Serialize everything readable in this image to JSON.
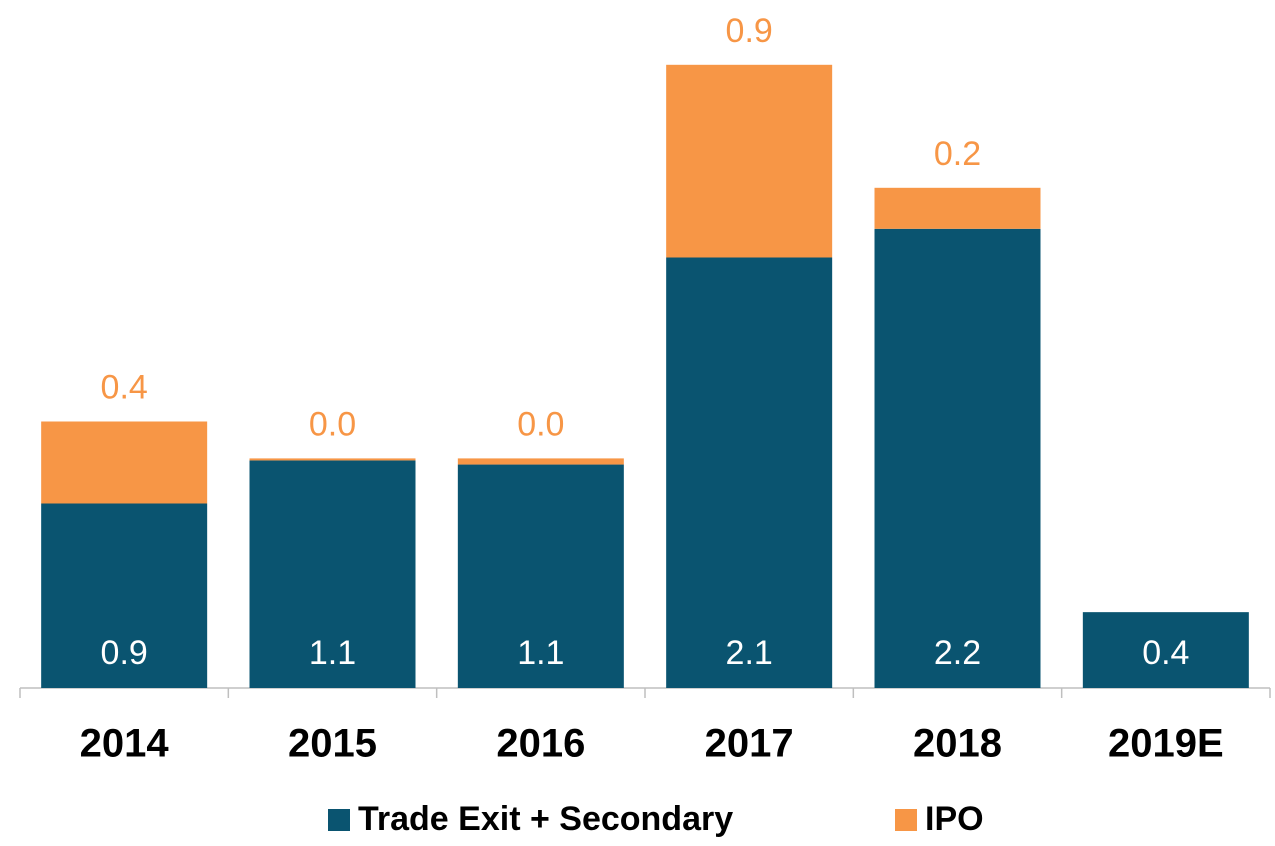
{
  "chart_data": {
    "type": "bar",
    "stacked": true,
    "categories": [
      "2014",
      "2015",
      "2016",
      "2017",
      "2018",
      "2019E"
    ],
    "series": [
      {
        "name": "Trade Exit + Secondary",
        "color": "#0a5470",
        "values": [
          0.9,
          1.11,
          1.09,
          2.1,
          2.24,
          0.37
        ],
        "value_labels": [
          "0.9",
          "1.1",
          "1.1",
          "2.1",
          "2.2",
          "0.4"
        ]
      },
      {
        "name": "IPO",
        "color": "#f79646",
        "values": [
          0.4,
          0.01,
          0.03,
          0.94,
          0.2,
          null
        ],
        "value_labels": [
          "0.4",
          "0.0",
          "0.0",
          "0.9",
          "0.2",
          null
        ]
      }
    ],
    "ylim": [
      0,
      3.2
    ]
  }
}
